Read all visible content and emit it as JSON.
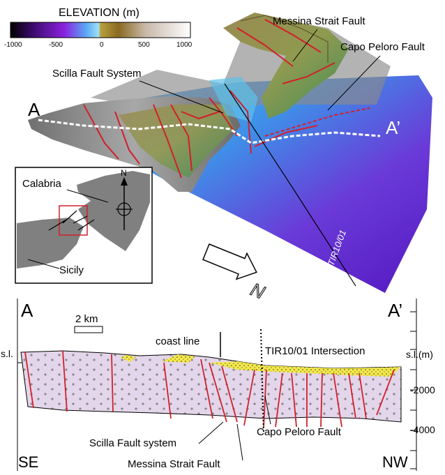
{
  "legend": {
    "title": "ELEVATION (m)",
    "ticks": [
      "-1000",
      "-500",
      "0",
      "500",
      "1000"
    ]
  },
  "map": {
    "labels": {
      "messina": "Messina Strait Fault",
      "capo": "Capo Peloro Fault",
      "scilla": "Scilla Fault System",
      "a": "A",
      "a_prime": "A’",
      "line_id": "TIR10/01",
      "north": "N"
    }
  },
  "inset": {
    "calabria": "Calabria",
    "sicily": "Sicily",
    "north": "N"
  },
  "section": {
    "a": "A",
    "a_prime": "A’",
    "scale": "2 km",
    "coast_line": "coast line",
    "intersection": "TIR10/01 Intersection",
    "sl_left": "s.l.",
    "sl_right": "s.l.(m)",
    "depth_ticks": [
      "-2000",
      "-4000"
    ],
    "se": "SE",
    "nw": "NW",
    "scilla": "Scilla Fault system",
    "capo": "Capo Peloro Fault",
    "messina": "Messina Strait Fault"
  },
  "colors": {
    "fault": "#d21f2a",
    "sediment": "#f3e84a",
    "basement": "#e3d6ea",
    "deep_sea": "#6a1fd0",
    "shallow_sea": "#3aa6f2"
  }
}
